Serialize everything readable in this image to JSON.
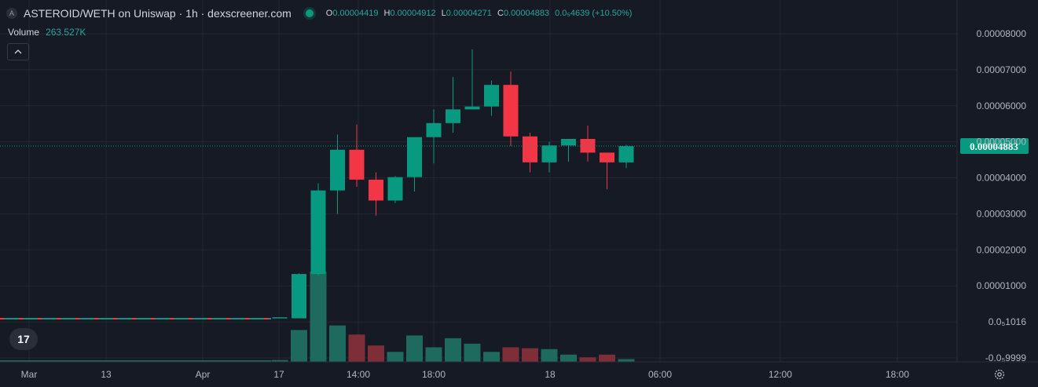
{
  "header": {
    "logo_text": "A",
    "title": "ASTEROID/WETH on Uniswap · 1h · dexscreener.com",
    "ohlc": [
      {
        "key": "O",
        "value": "0.00004419"
      },
      {
        "key": "H",
        "value": "0.00004912"
      },
      {
        "key": "L",
        "value": "0.00004271"
      },
      {
        "key": "C",
        "value": "0.00004883"
      }
    ],
    "change": "0.0₅4639 (+10.50%)"
  },
  "volume": {
    "label": "Volume",
    "value": "263.527K"
  },
  "icons": {
    "collapse": "chevron-up-icon",
    "logo": "tradingview-logo-icon",
    "settings": "gear-icon"
  },
  "tv_logo_text": "17",
  "colors": {
    "background": "#161a25",
    "grid": "#232733",
    "up": "#089981",
    "down": "#f23645",
    "vol_up": "#1e6a5e",
    "vol_down": "#7e2e38",
    "axis_text": "#b2b5be",
    "badge": "#089981"
  },
  "chart_data": {
    "type": "candlestick",
    "y_axis_labels": [
      "0.00008000",
      "0.00007000",
      "0.00006000",
      "0.00005000",
      "0.00004000",
      "0.00003000",
      "0.00002000",
      "0.00001000",
      "0.0₅1016",
      "-0.0₅9999"
    ],
    "ylim": [
      -9.9999e-06,
      8e-05
    ],
    "x_axis_labels": [
      "Mar",
      "13",
      "Apr",
      "17",
      "14:00",
      "18:00",
      "18",
      "06:00",
      "12:00",
      "18:00"
    ],
    "last_price_label": "0.00004883",
    "last_price": 4.883e-05,
    "flat_segment": {
      "value": 1e-06,
      "colors": [
        "#089981",
        "#f23645"
      ]
    },
    "candles": [
      {
        "o": 1e-06,
        "h": 1.3e-06,
        "l": 1e-06,
        "c": 1.3e-06
      },
      {
        "o": 1e-06,
        "h": 1.35e-05,
        "l": 1e-06,
        "c": 1.33e-05
      },
      {
        "o": 1.33e-05,
        "h": 3.85e-05,
        "l": 1.3e-05,
        "c": 3.65e-05
      },
      {
        "o": 3.65e-05,
        "h": 5.2e-05,
        "l": 3e-05,
        "c": 4.78e-05
      },
      {
        "o": 4.78e-05,
        "h": 5.48e-05,
        "l": 3.75e-05,
        "c": 3.95e-05
      },
      {
        "o": 3.95e-05,
        "h": 4.15e-05,
        "l": 2.95e-05,
        "c": 3.37e-05
      },
      {
        "o": 3.37e-05,
        "h": 4.05e-05,
        "l": 3.3e-05,
        "c": 4.02e-05
      },
      {
        "o": 4.02e-05,
        "h": 5.12e-05,
        "l": 3.62e-05,
        "c": 5.13e-05
      },
      {
        "o": 5.13e-05,
        "h": 5.9e-05,
        "l": 4.4e-05,
        "c": 5.52e-05
      },
      {
        "o": 5.52e-05,
        "h": 6.8e-05,
        "l": 5.25e-05,
        "c": 5.9e-05
      },
      {
        "o": 5.9e-05,
        "h": 7.57e-05,
        "l": 5.9e-05,
        "c": 5.98e-05
      },
      {
        "o": 5.98e-05,
        "h": 6.7e-05,
        "l": 5.72e-05,
        "c": 6.58e-05
      },
      {
        "o": 6.58e-05,
        "h": 6.95e-05,
        "l": 4.88e-05,
        "c": 5.15e-05
      },
      {
        "o": 5.15e-05,
        "h": 5.25e-05,
        "l": 4.15e-05,
        "c": 4.43e-05
      },
      {
        "o": 4.43e-05,
        "h": 5e-05,
        "l": 4.15e-05,
        "c": 4.9e-05
      },
      {
        "o": 4.9e-05,
        "h": 5.08e-05,
        "l": 4.45e-05,
        "c": 5.08e-05
      },
      {
        "o": 5.08e-05,
        "h": 5.45e-05,
        "l": 4.45e-05,
        "c": 4.7e-05
      },
      {
        "o": 4.7e-05,
        "h": 4.7e-05,
        "l": 3.68e-05,
        "c": 4.43e-05
      },
      {
        "o": 4.43e-05,
        "h": 4.92e-05,
        "l": 4.27e-05,
        "c": 4.88e-05
      }
    ],
    "volume_fraction": [
      0.02,
      0.35,
      0.99,
      0.4,
      0.3,
      0.18,
      0.11,
      0.29,
      0.16,
      0.26,
      0.2,
      0.11,
      0.16,
      0.15,
      0.14,
      0.08,
      0.05,
      0.08,
      0.03
    ]
  }
}
